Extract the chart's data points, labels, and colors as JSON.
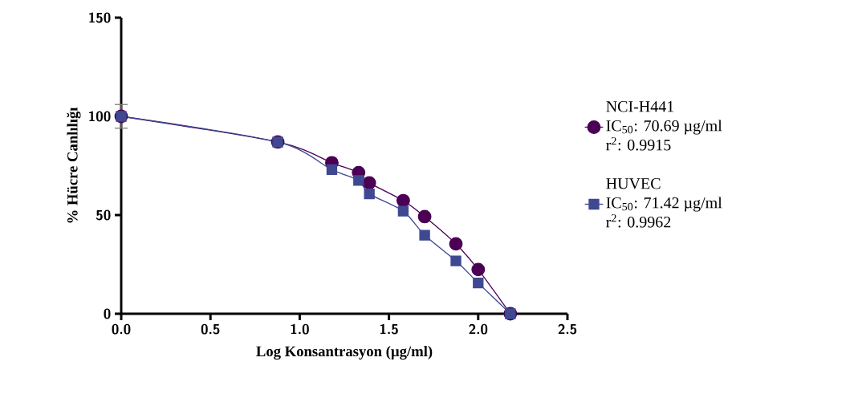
{
  "chart_data": {
    "type": "line",
    "xlabel": "Log Konsantrasyon (µg/ml)",
    "ylabel": "% Hücre Canlılığı",
    "x": [
      0,
      0.877,
      1.18,
      1.33,
      1.39,
      1.58,
      1.7,
      1.875,
      2.0,
      2.18
    ],
    "series": [
      {
        "name": "NCI-H441",
        "color": "#4b0055",
        "marker": "circle",
        "values": [
          100,
          87,
          76.5,
          71.5,
          66.3,
          57.3,
          49.2,
          35.4,
          22.4,
          0
        ],
        "errors": [
          6,
          null,
          null,
          null,
          null,
          null,
          null,
          null,
          null,
          null
        ]
      },
      {
        "name": "HUVEC",
        "color": "#3f4891",
        "marker": "square",
        "values": [
          100,
          87,
          73,
          67.5,
          60.7,
          52,
          39.8,
          26.8,
          15.6,
          0
        ]
      }
    ],
    "annotations": [
      "IC$_{50}$: 70.69 µg/ml",
      "r$^{2}$: 0.9915",
      "IC$_{50}$: 71.42 µg/ml",
      "r$^{2}$: 0.9962"
    ],
    "xlim": [
      0,
      2.5
    ],
    "ylim": [
      0,
      150
    ],
    "xticks": [
      {
        "value": 0,
        "label": "0.0"
      },
      {
        "value": 0.5,
        "label": "0.5"
      },
      {
        "value": 1,
        "label": "1.0"
      },
      {
        "value": 1.5,
        "label": "1.5"
      },
      {
        "value": 2,
        "label": "2.0"
      },
      {
        "value": 2.5,
        "label": "2.5"
      }
    ],
    "yticks": [
      0,
      50,
      100,
      150
    ],
    "grid": false,
    "legend": "right",
    "line_style": "solid"
  }
}
